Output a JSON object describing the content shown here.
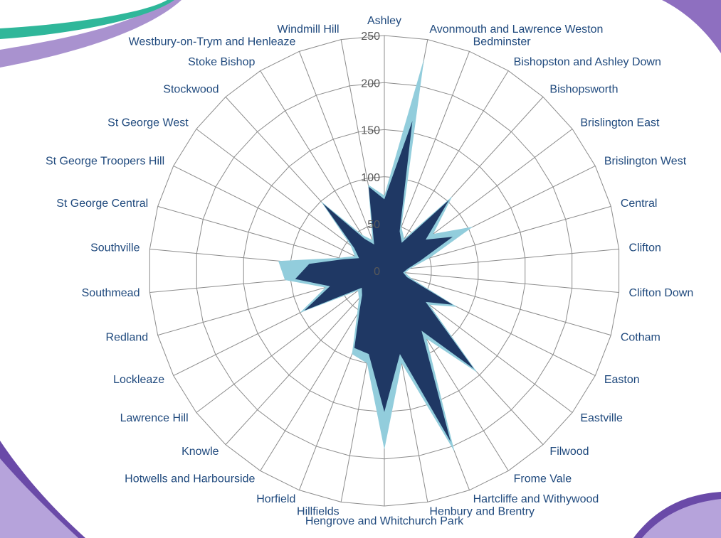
{
  "chart_data": {
    "type": "radar",
    "categories": [
      "Ashley",
      "Avonmouth and Lawrence Weston",
      "Bedminster",
      "Bishopston and Ashley Down",
      "Bishopsworth",
      "Brislington East",
      "Brislington West",
      "Central",
      "Clifton",
      "Clifton Down",
      "Cotham",
      "Easton",
      "Eastville",
      "Filwood",
      "Frome Vale",
      "Hartcliffe and Withywood",
      "Henbury and Brentry",
      "Hengrove and Whitchurch Park",
      "Hillfields",
      "Horfield",
      "Hotwells and Harbourside",
      "Knowle",
      "Lawrence Hill",
      "Lockleaze",
      "Redland",
      "Southmead",
      "Southville",
      "St George Central",
      "St George Troopers Hill",
      "St George West",
      "Stockwood",
      "Stoke Bishop",
      "Westbury-on-Trym and Henleaze",
      "Windmill Hill"
    ],
    "series": [
      {
        "color": "#92cddc",
        "values": [
          80,
          230,
          50,
          40,
          107,
          65,
          105,
          50,
          28,
          22,
          30,
          86,
          60,
          146,
          85,
          206,
          100,
          190,
          100,
          95,
          55,
          40,
          35,
          100,
          65,
          106,
          113,
          50,
          35,
          45,
          100,
          45,
          35,
          93
        ]
      },
      {
        "color": "#1f3864",
        "values": [
          76,
          162,
          45,
          35,
          102,
          55,
          81,
          40,
          25,
          20,
          25,
          81,
          55,
          141,
          75,
          195,
          90,
          150,
          90,
          88,
          50,
          35,
          30,
          95,
          60,
          95,
          80,
          45,
          30,
          40,
          97,
          40,
          30,
          91
        ]
      }
    ],
    "ylim": [
      0,
      250
    ],
    "yticks": [
      0,
      50,
      100,
      150,
      200,
      250
    ],
    "grid": true
  }
}
